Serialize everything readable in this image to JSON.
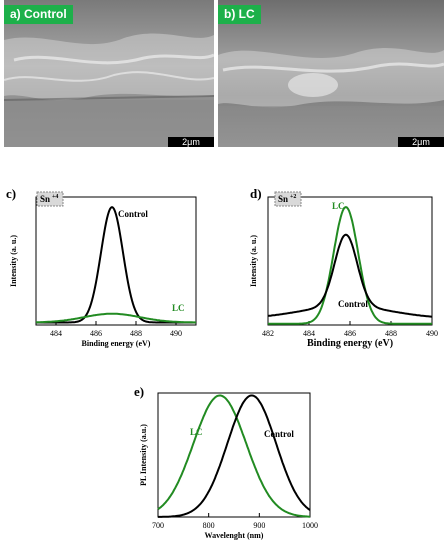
{
  "sem": [
    {
      "label": "a) Control",
      "scale": "2μm"
    },
    {
      "label": "b) LC",
      "scale": "2μm"
    }
  ],
  "colors": {
    "control": "#000000",
    "lc": "#228b22",
    "tag": "#1db04a"
  },
  "chart_data": [
    {
      "panel": "c)",
      "type": "line",
      "badge": "Sn",
      "badge_sup": "+4",
      "xlabel": "Binding energy (eV)",
      "ylabel": "Intensity (a. u.)",
      "xlim": [
        483,
        491
      ],
      "xticks": [
        "484",
        "486",
        "488",
        "490"
      ],
      "series": [
        {
          "name": "Control",
          "center": 486.8,
          "sigma": 0.55,
          "amp": 0.92,
          "base": 0.02
        },
        {
          "name": "LC",
          "center": 486.8,
          "sigma": 1.4,
          "amp": 0.07,
          "base": 0.02
        }
      ]
    },
    {
      "panel": "d)",
      "type": "line",
      "badge": "Sn",
      "badge_sup": "+2",
      "xlabel": "Binding energy (eV)",
      "ylabel": "Intensity (a. u.)",
      "xlim": [
        482,
        490
      ],
      "xticks": [
        "482",
        "484",
        "486",
        "488",
        "490"
      ],
      "series": [
        {
          "name": "LC",
          "center": 485.8,
          "sigma": 0.6,
          "amp": 0.93,
          "base": 0.01
        },
        {
          "name": "Control",
          "center": 485.8,
          "sigma": 0.55,
          "amp": 0.57,
          "base": 0.05,
          "tail": 0.1
        }
      ]
    },
    {
      "panel": "e)",
      "type": "line",
      "xlabel": "Wavelenght (nm)",
      "ylabel": "PL Intensity (a.u.)",
      "xlim": [
        700,
        1000
      ],
      "xticks": [
        "700",
        "800",
        "900",
        "1000"
      ],
      "series": [
        {
          "name": "LC",
          "center": 822,
          "sigma": 52,
          "amp": 1.0,
          "base": 0.0
        },
        {
          "name": "Control",
          "center": 885,
          "sigma": 48,
          "amp": 1.0,
          "base": 0.0
        }
      ]
    }
  ]
}
